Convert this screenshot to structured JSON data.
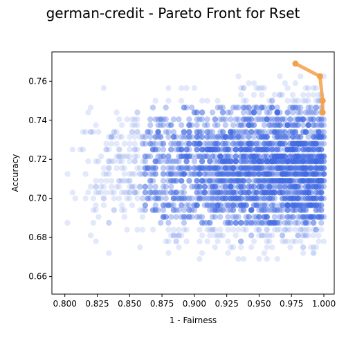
{
  "chart_data": {
    "type": "scatter",
    "title": "german-credit - Pareto Front for Rset",
    "xlabel": "1 - Fairness",
    "ylabel": "Accuracy",
    "xlim": [
      0.79,
      1.008
    ],
    "ylim": [
      0.651,
      0.775
    ],
    "xticks": [
      "0.800",
      "0.825",
      "0.850",
      "0.875",
      "0.900",
      "0.925",
      "0.950",
      "0.975",
      "1.000"
    ],
    "xtick_values": [
      0.8,
      0.825,
      0.85,
      0.875,
      0.9,
      0.925,
      0.95,
      0.975,
      1.0
    ],
    "yticks": [
      "0.66",
      "0.68",
      "0.70",
      "0.72",
      "0.74",
      "0.76"
    ],
    "ytick_values": [
      0.66,
      0.68,
      0.7,
      0.72,
      0.74,
      0.76
    ],
    "grid": false,
    "legend": "none",
    "series": [
      {
        "kind": "points",
        "color": "#4169e1",
        "x_range": [
          0.8,
          1.0
        ],
        "y_range": [
          0.656,
          0.769
        ],
        "accuracy_levels": [
          0.656,
          0.6595,
          0.663,
          0.6655,
          0.669,
          0.672,
          0.675,
          0.678,
          0.681,
          0.684,
          0.6875,
          0.6905,
          0.694,
          0.6965,
          0.7,
          0.703,
          0.706,
          0.709,
          0.7125,
          0.7155,
          0.719,
          0.7215,
          0.725,
          0.728,
          0.7315,
          0.734,
          0.7375,
          0.7405,
          0.744,
          0.7465,
          0.75,
          0.753,
          0.7565,
          0.759,
          0.7625,
          0.7655,
          0.769
        ]
      },
      {
        "kind": "pareto-front",
        "color": "#f5a04a",
        "x": [
          0.978,
          0.997,
          0.999,
          0.999
        ],
        "y": [
          0.769,
          0.7625,
          0.75,
          0.744
        ]
      }
    ]
  }
}
